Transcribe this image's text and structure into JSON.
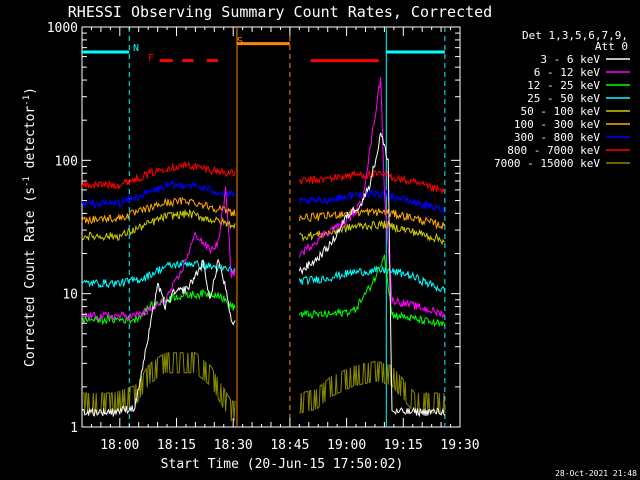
{
  "chart_data": {
    "type": "line",
    "title": "RHESSI Observing Summary Count Rates, Corrected",
    "xlabel": "Start Time (20-Jun-15 17:50:02)",
    "ylabel": "Corrected Count Rate (s-1 detector-1)",
    "ylabel_parts": {
      "a": "Corrected Count Rate (s",
      "sup1": "-1",
      "b": " detector",
      "sup2": "-1",
      "c": ")"
    },
    "footer": "28-Oct-2021 21:48",
    "x_unit": "minutes after 17:50:02",
    "xlim": [
      0,
      100
    ],
    "ylim": [
      1,
      1000
    ],
    "yscale": "log",
    "x_ticks": [
      {
        "label": "18:00",
        "value": 10
      },
      {
        "label": "18:15",
        "value": 25
      },
      {
        "label": "18:30",
        "value": 40
      },
      {
        "label": "18:45",
        "value": 55
      },
      {
        "label": "19:00",
        "value": 70
      },
      {
        "label": "19:15",
        "value": 85
      },
      {
        "label": "19:30",
        "value": 100
      }
    ],
    "y_ticks": [
      {
        "label": "1",
        "value": 1
      },
      {
        "label": "10",
        "value": 10
      },
      {
        "label": "100",
        "value": 100
      },
      {
        "label": "1000",
        "value": 1000
      }
    ],
    "legend_header": [
      "Det 1,3,5,6,7,9,",
      "Att 0"
    ],
    "legend_position": "top-right",
    "gaps": [
      [
        40.5,
        57.5
      ]
    ],
    "series": [
      {
        "name": "3 - 6 keV",
        "color": "#ffffff",
        "values": [
          [
            0,
            1.3
          ],
          [
            8,
            1.3
          ],
          [
            14,
            1.4
          ],
          [
            18,
            5.5
          ],
          [
            20,
            12
          ],
          [
            22,
            8
          ],
          [
            24,
            10
          ],
          [
            28,
            11
          ],
          [
            32,
            17
          ],
          [
            34,
            9
          ],
          [
            36,
            18
          ],
          [
            38,
            11
          ],
          [
            39.5,
            6
          ],
          [
            58,
            15
          ],
          [
            62,
            18
          ],
          [
            66,
            24
          ],
          [
            70,
            38
          ],
          [
            74,
            48
          ],
          [
            76,
            65
          ],
          [
            78,
            110
          ],
          [
            79,
            160
          ],
          [
            81,
            100
          ],
          [
            82,
            1.3
          ],
          [
            92,
            1.3
          ],
          [
            96,
            1.3
          ]
        ]
      },
      {
        "name": "6 - 12 keV",
        "color": "#ff00ff",
        "values": [
          [
            0,
            6.8
          ],
          [
            8,
            6.8
          ],
          [
            14,
            6.8
          ],
          [
            18,
            7.5
          ],
          [
            22,
            9
          ],
          [
            26,
            14
          ],
          [
            30,
            28
          ],
          [
            34,
            21
          ],
          [
            36,
            24
          ],
          [
            38,
            60
          ],
          [
            39.5,
            14
          ],
          [
            58,
            20
          ],
          [
            64,
            28
          ],
          [
            70,
            35
          ],
          [
            74,
            48
          ],
          [
            76,
            110
          ],
          [
            78,
            270
          ],
          [
            79,
            420
          ],
          [
            80,
            60
          ],
          [
            82,
            9
          ],
          [
            96,
            7
          ]
        ]
      },
      {
        "name": "12 - 25 keV",
        "color": "#00ff00",
        "values": [
          [
            0,
            6.4
          ],
          [
            8,
            6.4
          ],
          [
            14,
            6.4
          ],
          [
            18,
            8
          ],
          [
            24,
            9.5
          ],
          [
            32,
            10
          ],
          [
            36,
            10
          ],
          [
            39.5,
            8
          ],
          [
            58,
            7
          ],
          [
            66,
            7
          ],
          [
            72,
            7.5
          ],
          [
            76,
            11
          ],
          [
            78,
            14
          ],
          [
            80,
            20
          ],
          [
            82,
            7
          ],
          [
            96,
            5.8
          ]
        ]
      },
      {
        "name": "25 - 50 keV",
        "color": "#00ffff",
        "values": [
          [
            0,
            12
          ],
          [
            10,
            12
          ],
          [
            16,
            13
          ],
          [
            22,
            16
          ],
          [
            28,
            17
          ],
          [
            34,
            16
          ],
          [
            39.5,
            15
          ],
          [
            58,
            12.5
          ],
          [
            64,
            13
          ],
          [
            72,
            14.5
          ],
          [
            80,
            15
          ],
          [
            86,
            14
          ],
          [
            96,
            10.5
          ]
        ]
      },
      {
        "name": "50 - 100 keV",
        "color": "#cccc00",
        "values": [
          [
            0,
            27
          ],
          [
            10,
            27
          ],
          [
            16,
            32
          ],
          [
            22,
            38
          ],
          [
            28,
            40
          ],
          [
            34,
            36
          ],
          [
            39.5,
            33
          ],
          [
            58,
            27
          ],
          [
            64,
            28
          ],
          [
            72,
            32
          ],
          [
            80,
            33
          ],
          [
            86,
            30
          ],
          [
            96,
            25
          ]
        ]
      },
      {
        "name": "100 - 300 keV",
        "color": "#ffaa00",
        "values": [
          [
            0,
            36
          ],
          [
            10,
            37
          ],
          [
            16,
            42
          ],
          [
            22,
            48
          ],
          [
            28,
            50
          ],
          [
            34,
            45
          ],
          [
            39.5,
            41
          ],
          [
            58,
            37
          ],
          [
            64,
            38
          ],
          [
            72,
            41
          ],
          [
            80,
            41
          ],
          [
            86,
            38
          ],
          [
            96,
            32
          ]
        ]
      },
      {
        "name": "300 - 800 keV",
        "color": "#0000ff",
        "values": [
          [
            0,
            47
          ],
          [
            10,
            48
          ],
          [
            16,
            55
          ],
          [
            22,
            64
          ],
          [
            28,
            66
          ],
          [
            34,
            60
          ],
          [
            39.5,
            55
          ],
          [
            58,
            49
          ],
          [
            64,
            50
          ],
          [
            72,
            55
          ],
          [
            80,
            56
          ],
          [
            86,
            50
          ],
          [
            96,
            42
          ]
        ]
      },
      {
        "name": "800 - 7000 keV",
        "color": "#ff0000",
        "values": [
          [
            0,
            65
          ],
          [
            10,
            66
          ],
          [
            16,
            76
          ],
          [
            22,
            88
          ],
          [
            28,
            92
          ],
          [
            34,
            85
          ],
          [
            39.5,
            80
          ],
          [
            58,
            70
          ],
          [
            64,
            72
          ],
          [
            72,
            78
          ],
          [
            80,
            78
          ],
          [
            86,
            70
          ],
          [
            96,
            58
          ]
        ]
      },
      {
        "name": "7000 - 15000 keV",
        "color": "#888800",
        "values": [
          [
            0,
            1.5
          ],
          [
            8,
            1.5
          ],
          [
            14,
            1.7
          ],
          [
            18,
            2.5
          ],
          [
            22,
            3.0
          ],
          [
            30,
            3.0
          ],
          [
            34,
            2.4
          ],
          [
            39.5,
            1.3
          ],
          [
            58,
            1.5
          ],
          [
            62,
            1.6
          ],
          [
            66,
            2.0
          ],
          [
            72,
            2.4
          ],
          [
            78,
            2.6
          ],
          [
            82,
            2.4
          ],
          [
            88,
            1.5
          ],
          [
            96,
            1.5
          ]
        ]
      }
    ],
    "annotations": [
      {
        "label": "N",
        "color": "#00ffff",
        "x": 13.5,
        "kind": "flag"
      },
      {
        "label": "F",
        "color": "#ff0000",
        "x": 17.5,
        "kind": "flag"
      },
      {
        "label": "S",
        "color": "#ff8800",
        "x": 41,
        "kind": "flag"
      }
    ],
    "state_bars": [
      {
        "name": "night",
        "color": "#00ffff",
        "y": 650,
        "ranges": [
          [
            0,
            12.5
          ],
          [
            80.5,
            96
          ]
        ]
      },
      {
        "name": "flare",
        "color": "#ff0000",
        "y": 560,
        "ranges": [
          [
            20.5,
            24
          ],
          [
            26.5,
            29.5
          ],
          [
            33,
            36
          ],
          [
            60.5,
            78.5
          ]
        ]
      },
      {
        "name": "saa",
        "color": "#ff8800",
        "y": 750,
        "ranges": [
          [
            41,
            55
          ]
        ]
      }
    ],
    "event_lines": [
      {
        "name": "night-end",
        "color": "#00ffff",
        "x": 12.5,
        "style": "dashed"
      },
      {
        "name": "saa-start",
        "color": "#ff8800",
        "x": 41,
        "style": "solid"
      },
      {
        "name": "saa-end",
        "color": "#ff8800",
        "x": 55,
        "style": "dashed"
      },
      {
        "name": "night-start",
        "color": "#00ffff",
        "x": 80.5,
        "style": "solid"
      },
      {
        "name": "night-end-2",
        "color": "#00ffff",
        "x": 96,
        "style": "dashed"
      }
    ]
  }
}
